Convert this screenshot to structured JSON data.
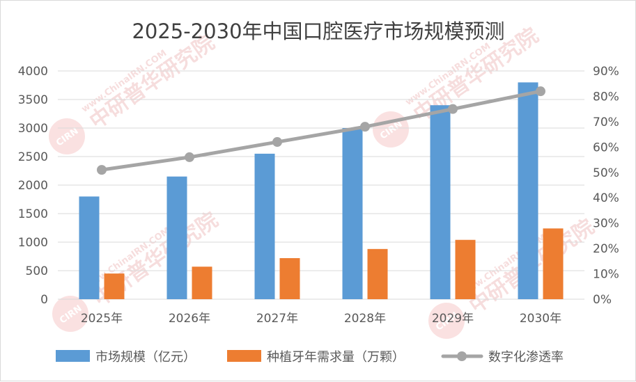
{
  "watermark": {
    "brand": "CIRN",
    "site": "www.ChinaIRN.COM",
    "name": "中研普华研究院"
  },
  "colors": {
    "market": "#5b9bd5",
    "implant": "#ed7d31",
    "rate": "#a5a5a5",
    "grid": "#d9d9d9",
    "text": "#595959"
  },
  "chart_data": {
    "type": "bar",
    "title": "2025-2030年中国口腔医疗市场规模预测",
    "categories": [
      "2025年",
      "2026年",
      "2027年",
      "2028年",
      "2029年",
      "2030年"
    ],
    "series": [
      {
        "name": "市场规模（亿元）",
        "type": "bar",
        "axis": "left",
        "values": [
          1800,
          2150,
          2550,
          3000,
          3400,
          3800
        ]
      },
      {
        "name": "种植牙年需求量（万颗）",
        "type": "bar",
        "axis": "left",
        "values": [
          450,
          570,
          720,
          880,
          1040,
          1240
        ]
      },
      {
        "name": "数字化渗透率",
        "type": "line",
        "axis": "right",
        "values": [
          0.51,
          0.56,
          0.62,
          0.68,
          0.75,
          0.82
        ]
      }
    ],
    "y_left": {
      "min": 0,
      "max": 4000,
      "step": 500,
      "tick_labels": [
        "0",
        "500",
        "1000",
        "1500",
        "2000",
        "2500",
        "3000",
        "3500",
        "4000"
      ]
    },
    "y_right": {
      "min": 0,
      "max": 0.9,
      "step": 0.1,
      "tick_labels": [
        "0%",
        "10%",
        "20%",
        "30%",
        "40%",
        "50%",
        "60%",
        "70%",
        "80%",
        "90%"
      ]
    },
    "grid": true,
    "legend_position": "bottom"
  }
}
